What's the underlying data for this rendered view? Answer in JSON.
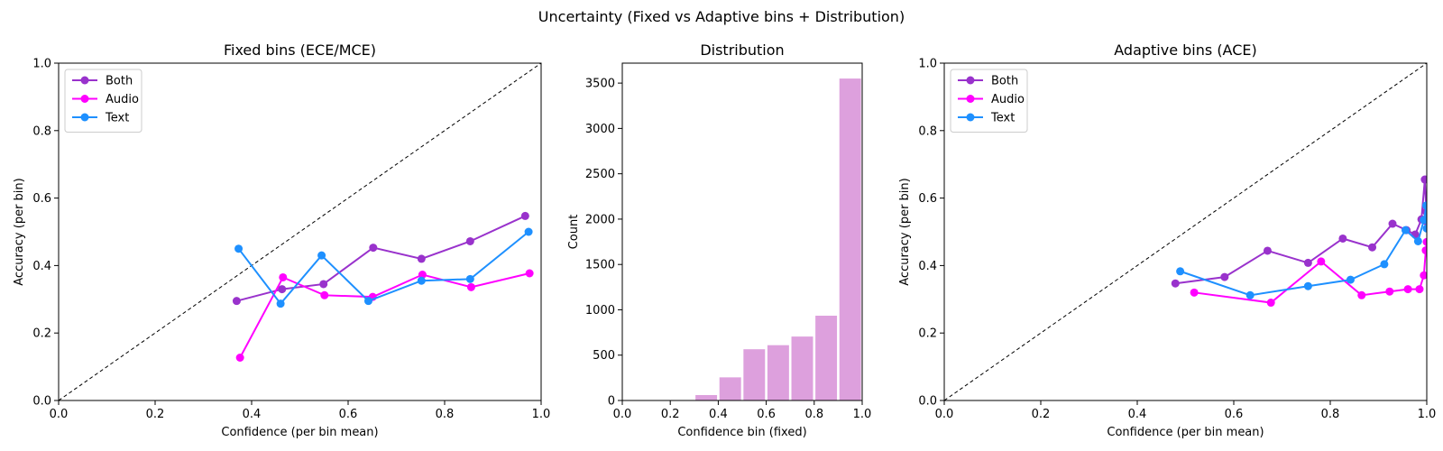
{
  "figure": {
    "title": "Uncertainty (Fixed vs Adaptive bins + Distribution)"
  },
  "chart_data": [
    {
      "type": "line",
      "title": "Fixed bins (ECE/MCE)",
      "xlabel": "Confidence (per bin mean)",
      "ylabel": "Accuracy (per bin)",
      "xlim": [
        0,
        1
      ],
      "ylim": [
        0,
        1
      ],
      "xticks": [
        "0.0",
        "0.2",
        "0.4",
        "0.6",
        "0.8",
        "1.0"
      ],
      "yticks": [
        "0.0",
        "0.2",
        "0.4",
        "0.6",
        "0.8",
        "1.0"
      ],
      "diagonal": true,
      "grid": false,
      "legend": "top-left",
      "series": [
        {
          "name": "Both",
          "color": "#9932cc",
          "x": [
            0.369,
            0.463,
            0.549,
            0.652,
            0.752,
            0.853,
            0.967
          ],
          "y": [
            0.295,
            0.33,
            0.345,
            0.453,
            0.42,
            0.472,
            0.547
          ]
        },
        {
          "name": "Audio",
          "color": "#ff00ff",
          "x": [
            0.376,
            0.465,
            0.551,
            0.651,
            0.754,
            0.855,
            0.976
          ],
          "y": [
            0.127,
            0.365,
            0.312,
            0.307,
            0.373,
            0.336,
            0.377
          ]
        },
        {
          "name": "Text",
          "color": "#1e90ff",
          "x": [
            0.373,
            0.46,
            0.545,
            0.642,
            0.752,
            0.853,
            0.974
          ],
          "y": [
            0.45,
            0.287,
            0.43,
            0.295,
            0.355,
            0.36,
            0.5
          ]
        }
      ]
    },
    {
      "type": "bar",
      "title": "Distribution",
      "xlabel": "Confidence bin (fixed)",
      "ylabel": "Count",
      "xlim": [
        0,
        1
      ],
      "ylim": [
        0,
        3720
      ],
      "xticks": [
        "0.0",
        "0.2",
        "0.4",
        "0.6",
        "0.8",
        "1.0"
      ],
      "yticks": [
        "0",
        "500",
        "1000",
        "1500",
        "2000",
        "2500",
        "3000",
        "3500"
      ],
      "color": "#dda0dd",
      "bin_edges": [
        0.3,
        0.4,
        0.5,
        0.6,
        0.7,
        0.8,
        0.9,
        1.0
      ],
      "values": [
        60,
        255,
        565,
        610,
        705,
        935,
        3550
      ]
    },
    {
      "type": "line",
      "title": "Adaptive bins (ACE)",
      "xlabel": "Confidence (per bin mean)",
      "ylabel": "Accuracy (per bin)",
      "xlim": [
        0,
        1
      ],
      "ylim": [
        0,
        1
      ],
      "xticks": [
        "0.0",
        "0.2",
        "0.4",
        "0.6",
        "0.8",
        "1.0"
      ],
      "yticks": [
        "0.0",
        "0.2",
        "0.4",
        "0.6",
        "0.8",
        "1.0"
      ],
      "diagonal": true,
      "grid": false,
      "legend": "top-left",
      "series": [
        {
          "name": "Both",
          "color": "#9932cc",
          "x": [
            0.479,
            0.581,
            0.67,
            0.754,
            0.826,
            0.887,
            0.929,
            0.958,
            0.976,
            0.989,
            0.996,
            0.999,
            1.0
          ],
          "y": [
            0.347,
            0.366,
            0.444,
            0.408,
            0.48,
            0.454,
            0.524,
            0.505,
            0.492,
            0.537,
            0.655,
            0.56,
            0.53
          ]
        },
        {
          "name": "Audio",
          "color": "#ff00ff",
          "x": [
            0.518,
            0.677,
            0.781,
            0.865,
            0.923,
            0.961,
            0.985,
            0.994,
            0.998,
            1.0
          ],
          "y": [
            0.32,
            0.29,
            0.412,
            0.312,
            0.323,
            0.33,
            0.33,
            0.371,
            0.445,
            0.47
          ]
        },
        {
          "name": "Text",
          "color": "#1e90ff",
          "x": [
            0.489,
            0.634,
            0.754,
            0.842,
            0.912,
            0.956,
            0.982,
            0.994,
            0.999,
            1.0
          ],
          "y": [
            0.383,
            0.312,
            0.339,
            0.358,
            0.404,
            0.505,
            0.472,
            0.535,
            0.578,
            0.51
          ]
        }
      ]
    }
  ]
}
